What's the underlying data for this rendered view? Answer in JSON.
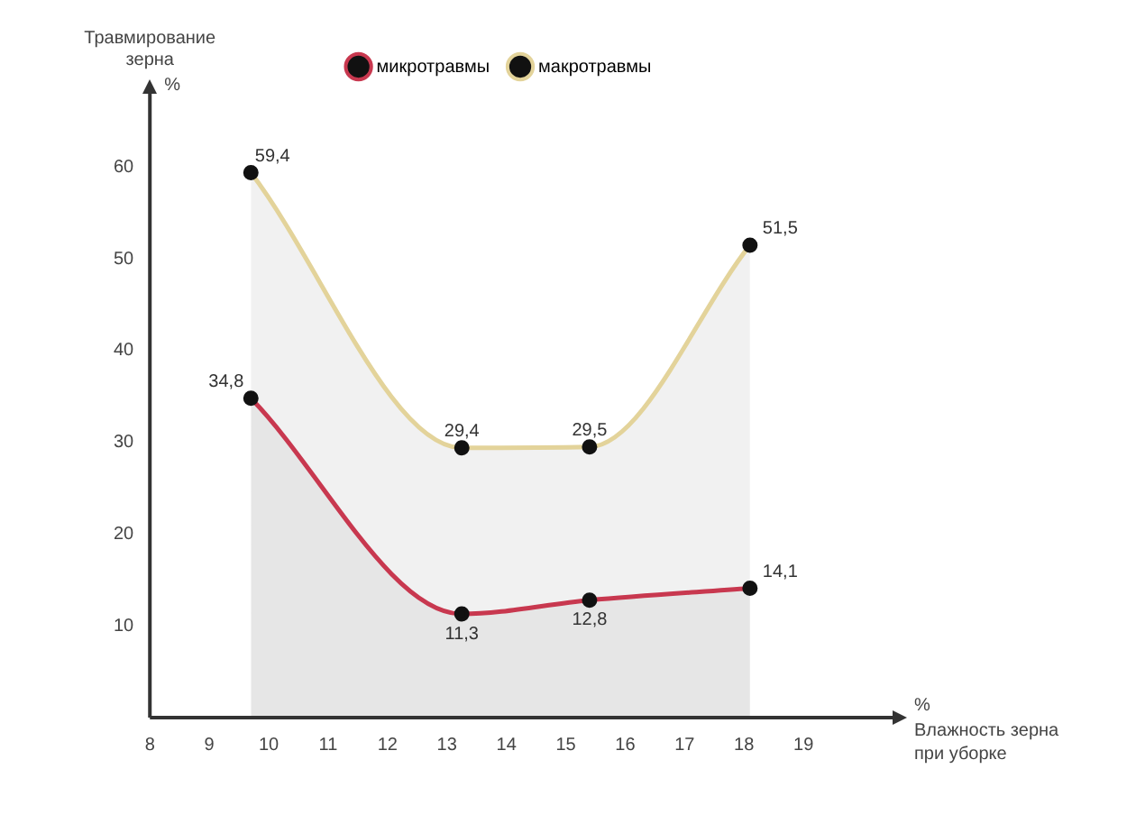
{
  "chart_data": {
    "type": "area",
    "ylabel": "Травмирование зерна",
    "xlabel": "Влажность зерна при уборке",
    "annotations": [
      "%",
      "%"
    ],
    "xlim": [
      8,
      20.5
    ],
    "xticks": [
      8,
      9,
      10,
      11,
      12,
      13,
      14,
      15,
      16,
      17,
      18,
      19
    ],
    "ylim": [
      0,
      68
    ],
    "yticks": [
      10,
      20,
      30,
      40,
      50,
      60
    ],
    "legend": "top",
    "marker": "circle",
    "grid": false,
    "series": [
      {
        "name": "микротравмы",
        "color": "#c8384f",
        "x": [
          9.7,
          13.25,
          15.4,
          18.1
        ],
        "values": [
          34.8,
          11.3,
          12.8,
          14.1
        ],
        "value_labels": [
          "34,8",
          "11,3",
          "12,8",
          "14,1"
        ]
      },
      {
        "name": "макротравмы",
        "color": "#e3d39a",
        "x": [
          9.7,
          13.25,
          15.4,
          18.1
        ],
        "values": [
          59.4,
          29.4,
          29.5,
          51.5
        ],
        "value_labels": [
          "59,4",
          "29,4",
          "29,5",
          "51,5"
        ]
      }
    ]
  }
}
